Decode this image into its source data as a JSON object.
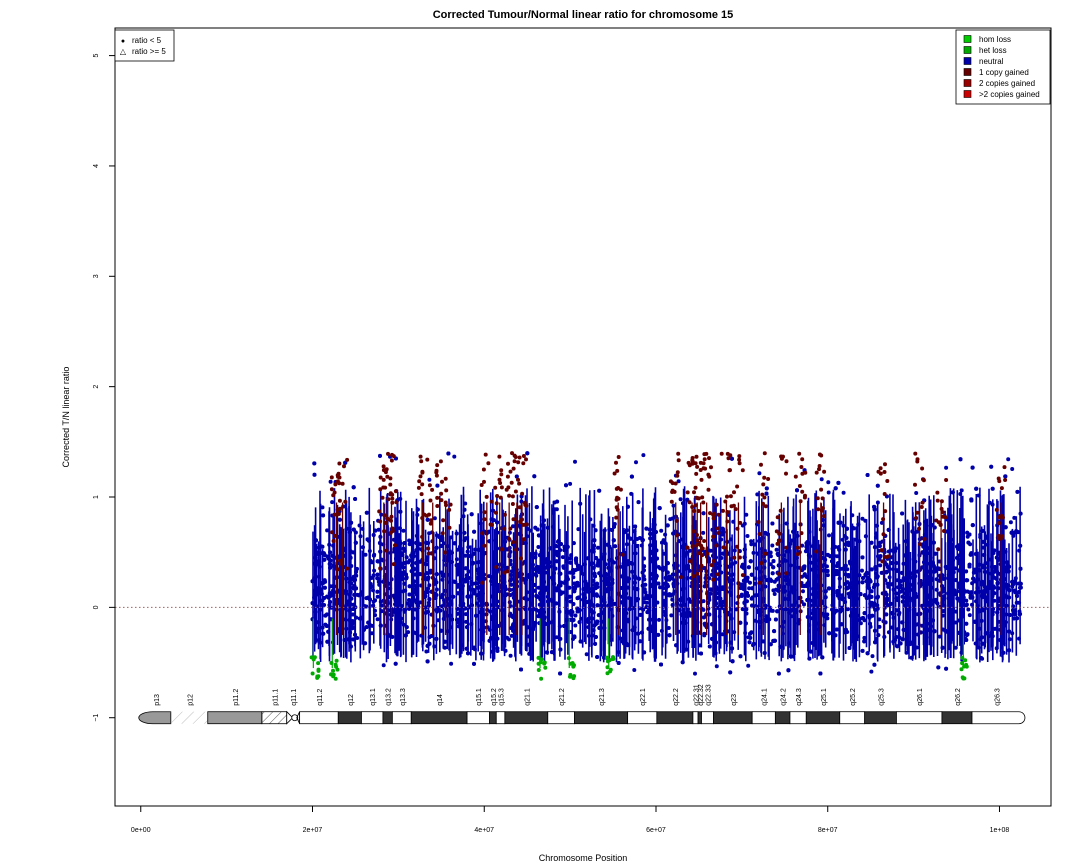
{
  "chart_data": {
    "type": "scatter",
    "title": "Corrected Tumour/Normal linear ratio for chromosome  15",
    "xlabel": "Chromosome Position",
    "ylabel": "Corrected T/N linear ratio",
    "xlim": [
      -3000000,
      106000000
    ],
    "ylim": [
      -1.8,
      5.25
    ],
    "x_ticks": [
      0,
      20000000,
      40000000,
      60000000,
      80000000,
      100000000
    ],
    "x_tick_labels": [
      "0e+00",
      "2e+07",
      "4e+07",
      "6e+07",
      "8e+07",
      "1e+08"
    ],
    "y_ticks": [
      -1,
      0,
      1,
      2,
      3,
      4,
      5
    ],
    "y_tick_labels": [
      "−1",
      "0",
      "1",
      "2",
      "3",
      "4",
      "5"
    ],
    "reference_line_y": 0,
    "shape_legend": {
      "placement": "top-left",
      "entries": [
        {
          "symbol": "●",
          "label": "ratio < 5"
        },
        {
          "symbol": "△",
          "label": "ratio >= 5"
        }
      ]
    },
    "legend": {
      "placement": "top-right",
      "entries": [
        {
          "label": "hom loss",
          "color": "#00cc00"
        },
        {
          "label": "het loss",
          "color": "#00aa00"
        },
        {
          "label": "neutral",
          "color": "#0000aa"
        },
        {
          "label": "1 copy gained",
          "color": "#660000"
        },
        {
          "label": "2 copies gained",
          "color": "#990000"
        },
        {
          "label": ">2 copies gained",
          "color": "#cc0000"
        }
      ]
    },
    "series": [
      {
        "name": "neutral",
        "color": "#0000aa",
        "x_range": [
          20000000,
          102500000
        ],
        "y_range": [
          -0.6,
          1.4
        ]
      },
      {
        "name": "1 copy gained",
        "color": "#660000",
        "y_range": [
          0.2,
          1.4
        ]
      },
      {
        "name": "het loss",
        "color": "#00aa00",
        "y_range": [
          -0.65,
          -0.45
        ]
      }
    ],
    "gain_regions_x": [
      22800000,
      23500000,
      28300000,
      28700000,
      29200000,
      32800000,
      34000000,
      35500000,
      40300000,
      41800000,
      42900000,
      43800000,
      44400000,
      55600000,
      62300000,
      64200000,
      64800000,
      65200000,
      65900000,
      66700000,
      68200000,
      69600000,
      72500000,
      74600000,
      76800000,
      79200000,
      86500000,
      90700000,
      93200000,
      100200000
    ],
    "loss_regions_x": [
      20100000,
      22300000,
      46500000,
      49900000,
      54500000,
      95800000
    ],
    "ideogram": {
      "y": -1,
      "bands": [
        {
          "name": "p13",
          "start": 0,
          "end": 3500000,
          "stain": "gvar"
        },
        {
          "name": "p12",
          "start": 3500000,
          "end": 7800000,
          "stain": "stalk"
        },
        {
          "name": "p11.2",
          "start": 7800000,
          "end": 14100000,
          "stain": "gvar"
        },
        {
          "name": "p11.1",
          "start": 14100000,
          "end": 17000000,
          "stain": "gvar_hatched"
        },
        {
          "name": "q11.1",
          "start": 17000000,
          "end": 18500000,
          "stain": "acen"
        },
        {
          "name": "q11.2",
          "start": 18500000,
          "end": 23000000,
          "stain": "gneg"
        },
        {
          "name": "q12",
          "start": 23000000,
          "end": 25700000,
          "stain": "gpos"
        },
        {
          "name": "q13.1",
          "start": 25700000,
          "end": 28200000,
          "stain": "gneg"
        },
        {
          "name": "q13.2",
          "start": 28200000,
          "end": 29300000,
          "stain": "gpos"
        },
        {
          "name": "q13.3",
          "start": 29300000,
          "end": 31500000,
          "stain": "gneg"
        },
        {
          "name": "q14",
          "start": 31500000,
          "end": 38000000,
          "stain": "gpos"
        },
        {
          "name": "q15.1",
          "start": 38000000,
          "end": 40600000,
          "stain": "gneg"
        },
        {
          "name": "q15.2",
          "start": 40600000,
          "end": 41400000,
          "stain": "gpos"
        },
        {
          "name": "q15.3",
          "start": 41400000,
          "end": 42400000,
          "stain": "gneg"
        },
        {
          "name": "q21.1",
          "start": 42400000,
          "end": 47400000,
          "stain": "gpos"
        },
        {
          "name": "q21.2",
          "start": 47400000,
          "end": 50500000,
          "stain": "gneg"
        },
        {
          "name": "q21.3",
          "start": 50500000,
          "end": 56700000,
          "stain": "gpos"
        },
        {
          "name": "q22.1",
          "start": 56700000,
          "end": 60100000,
          "stain": "gneg"
        },
        {
          "name": "q22.2",
          "start": 60100000,
          "end": 64300000,
          "stain": "gpos"
        },
        {
          "name": "q22.31",
          "start": 64300000,
          "end": 64900000,
          "stain": "gneg"
        },
        {
          "name": "q22.32",
          "start": 64900000,
          "end": 65300000,
          "stain": "gpos"
        },
        {
          "name": "q22.33",
          "start": 65300000,
          "end": 66700000,
          "stain": "gneg"
        },
        {
          "name": "q23",
          "start": 66700000,
          "end": 71200000,
          "stain": "gpos"
        },
        {
          "name": "q24.1",
          "start": 71200000,
          "end": 73900000,
          "stain": "gneg"
        },
        {
          "name": "q24.2",
          "start": 73900000,
          "end": 75600000,
          "stain": "gpos"
        },
        {
          "name": "q24.3",
          "start": 75600000,
          "end": 77500000,
          "stain": "gneg"
        },
        {
          "name": "q25.1",
          "start": 77500000,
          "end": 81400000,
          "stain": "gpos"
        },
        {
          "name": "q25.2",
          "start": 81400000,
          "end": 84300000,
          "stain": "gneg"
        },
        {
          "name": "q25.3",
          "start": 84300000,
          "end": 88000000,
          "stain": "gpos"
        },
        {
          "name": "q26.1",
          "start": 88000000,
          "end": 93300000,
          "stain": "gneg"
        },
        {
          "name": "q26.2",
          "start": 93300000,
          "end": 96800000,
          "stain": "gpos"
        },
        {
          "name": "q26.3",
          "start": 96800000,
          "end": 102500000,
          "stain": "gneg"
        }
      ]
    }
  }
}
